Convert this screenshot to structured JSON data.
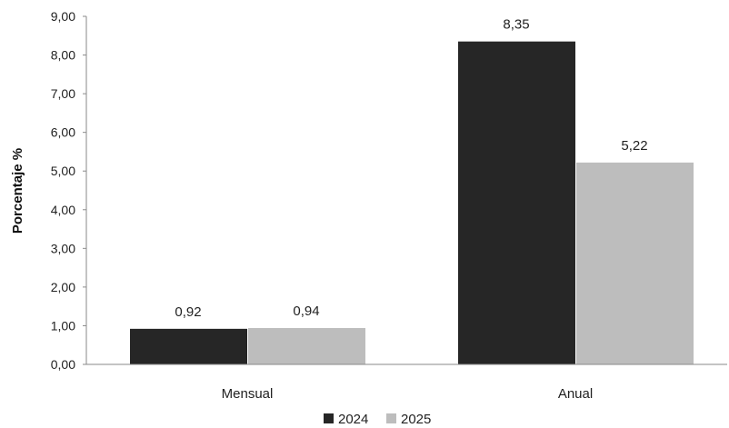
{
  "chart_data": {
    "type": "bar",
    "title": "",
    "xlabel": "",
    "ylabel": "Porcentaje %",
    "ylim": [
      0,
      9
    ],
    "y_ticks": [
      "0,00",
      "1,00",
      "2,00",
      "3,00",
      "4,00",
      "5,00",
      "6,00",
      "7,00",
      "8,00",
      "9,00"
    ],
    "y_tick_values": [
      0,
      1,
      2,
      3,
      4,
      5,
      6,
      7,
      8,
      9
    ],
    "categories": [
      "Mensual",
      "Anual"
    ],
    "series": [
      {
        "name": "2024",
        "color": "#262626",
        "values": [
          0.92,
          8.35
        ],
        "labels": [
          "0,92",
          "8,35"
        ]
      },
      {
        "name": "2025",
        "color": "#bdbdbd",
        "values": [
          0.94,
          5.22
        ],
        "labels": [
          "0,94",
          "5,22"
        ]
      }
    ],
    "grid": false,
    "legend": "bottom"
  }
}
